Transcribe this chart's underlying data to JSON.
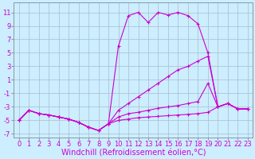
{
  "background_color": "#cceeff",
  "grid_color": "#aabbcc",
  "line_color": "#cc00cc",
  "xlabel": "Windchill (Refroidissement éolien,°C)",
  "xlabel_fontsize": 7,
  "tick_fontsize": 6,
  "xlim": [
    -0.5,
    23.5
  ],
  "ylim": [
    -7.5,
    12.5
  ],
  "yticks": [
    -7,
    -5,
    -3,
    -1,
    1,
    3,
    5,
    7,
    9,
    11
  ],
  "xticks": [
    0,
    1,
    2,
    3,
    4,
    5,
    6,
    7,
    8,
    9,
    10,
    11,
    12,
    13,
    14,
    15,
    16,
    17,
    18,
    19,
    20,
    21,
    22,
    23
  ],
  "series": [
    {
      "x": [
        0,
        1,
        2,
        3,
        4,
        5,
        6,
        7,
        8,
        9,
        10,
        11,
        12,
        13,
        14,
        15,
        16,
        17,
        18,
        19,
        20,
        21,
        22,
        23
      ],
      "y": [
        -5,
        -3.5,
        -4.0,
        -4.2,
        -4.5,
        -4.8,
        -5.3,
        -6.0,
        -6.5,
        -5.5,
        6.0,
        10.5,
        11.0,
        9.5,
        11.0,
        10.6,
        11.0,
        10.5,
        9.3,
        5.0,
        -3.0,
        -2.5,
        -3.3,
        -3.3
      ]
    },
    {
      "x": [
        0,
        1,
        2,
        3,
        4,
        5,
        6,
        7,
        8,
        9,
        10,
        11,
        12,
        13,
        14,
        15,
        16,
        17,
        18,
        19,
        20,
        21,
        22,
        23
      ],
      "y": [
        -5,
        -3.5,
        -4.0,
        -4.2,
        -4.5,
        -4.8,
        -5.3,
        -6.0,
        -6.5,
        -5.5,
        -3.5,
        -2.5,
        -1.5,
        -0.5,
        0.5,
        1.5,
        2.5,
        3.0,
        3.8,
        4.5,
        -3.0,
        -2.5,
        -3.3,
        -3.3
      ]
    },
    {
      "x": [
        0,
        1,
        2,
        3,
        4,
        5,
        6,
        7,
        8,
        9,
        10,
        11,
        12,
        13,
        14,
        15,
        16,
        17,
        18,
        19,
        20,
        21,
        22,
        23
      ],
      "y": [
        -5,
        -3.5,
        -4.0,
        -4.2,
        -4.5,
        -4.8,
        -5.3,
        -6.0,
        -6.5,
        -5.5,
        -4.5,
        -4.0,
        -3.8,
        -3.5,
        -3.2,
        -3.0,
        -2.8,
        -2.5,
        -2.2,
        0.5,
        -3.0,
        -2.5,
        -3.3,
        -3.3
      ]
    },
    {
      "x": [
        0,
        1,
        2,
        3,
        4,
        5,
        6,
        7,
        8,
        9,
        10,
        11,
        12,
        13,
        14,
        15,
        16,
        17,
        18,
        19,
        20,
        21,
        22,
        23
      ],
      "y": [
        -5,
        -3.5,
        -4.0,
        -4.2,
        -4.5,
        -4.8,
        -5.3,
        -6.0,
        -6.5,
        -5.5,
        -5.0,
        -4.8,
        -4.6,
        -4.5,
        -4.4,
        -4.3,
        -4.2,
        -4.1,
        -4.0,
        -3.8,
        -3.0,
        -2.5,
        -3.3,
        -3.3
      ]
    }
  ]
}
